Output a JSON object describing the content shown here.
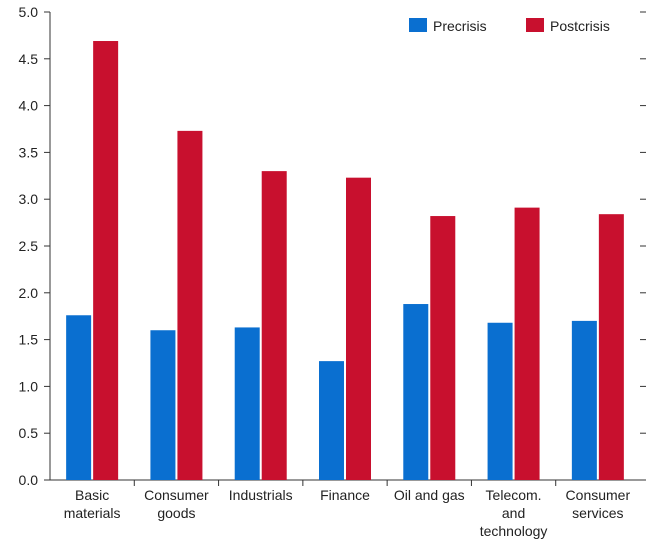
{
  "chart_data": {
    "type": "bar",
    "title": "",
    "xlabel": "",
    "ylabel": "",
    "ylim": [
      0,
      5
    ],
    "yticks": [
      "0.0",
      "0.5",
      "1.0",
      "1.5",
      "2.0",
      "2.5",
      "3.0",
      "3.5",
      "4.0",
      "4.5",
      "5.0"
    ],
    "yticks_right": true,
    "grid": false,
    "legend_position": "top-right",
    "categories": [
      [
        "Basic",
        "materials"
      ],
      [
        "Consumer",
        "goods"
      ],
      [
        "Industrials"
      ],
      [
        "Finance"
      ],
      [
        "Oil and gas"
      ],
      [
        "Telecom.",
        "and",
        "technology"
      ],
      [
        "Consumer",
        "services"
      ]
    ],
    "series": [
      {
        "name": "Precrisis",
        "color": "#0a6fd0",
        "values": [
          1.76,
          1.6,
          1.63,
          1.27,
          1.88,
          1.68,
          1.7
        ]
      },
      {
        "name": "Postcrisis",
        "color": "#c8102e",
        "values": [
          4.69,
          3.73,
          3.3,
          3.23,
          2.82,
          2.91,
          2.84
        ]
      }
    ]
  }
}
